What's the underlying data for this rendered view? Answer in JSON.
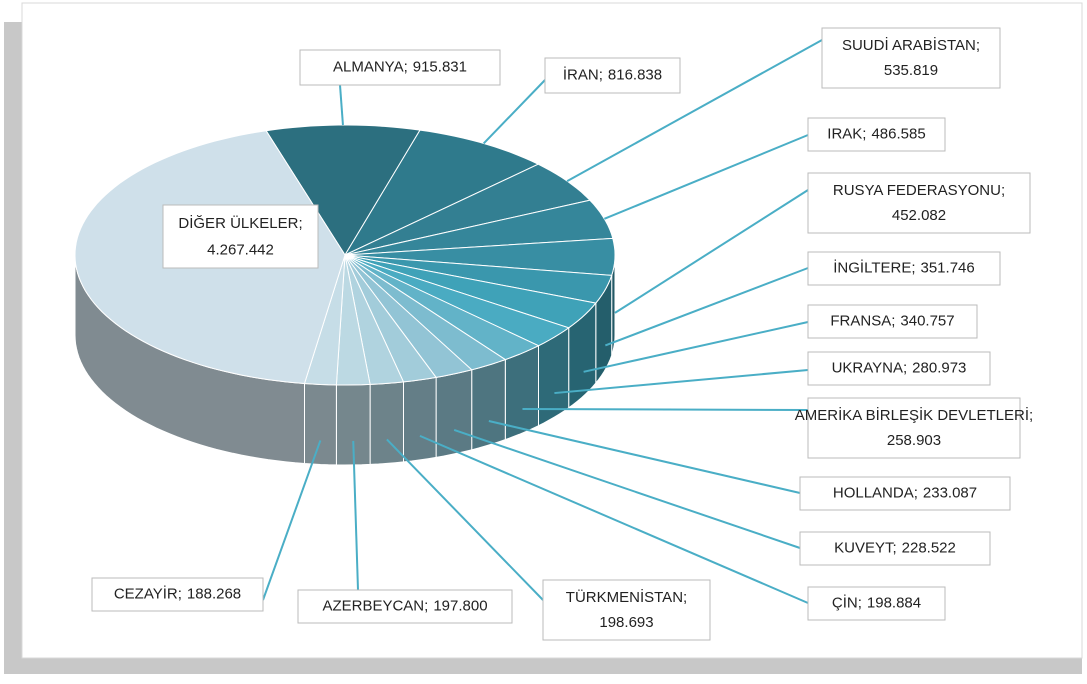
{
  "chart_data": {
    "type": "pie",
    "categories": [
      "ALMANYA",
      "İRAN",
      "SUUDİ ARABİSTAN",
      "IRAK",
      "RUSYA FEDERASYONU",
      "İNGİLTERE",
      "FRANSA",
      "UKRAYNA",
      "AMERİKA BİRLEŞİK DEVLETLERİ",
      "HOLLANDA",
      "KUVEYT",
      "ÇİN",
      "TÜRKMENİSTAN",
      "AZERBEYCAN",
      "CEZAYİR",
      "DİĞER ÜLKELER"
    ],
    "values": [
      915831,
      816838,
      535819,
      486585,
      452082,
      351746,
      340757,
      280973,
      258903,
      233087,
      228522,
      198884,
      198693,
      197800,
      188268,
      4267442
    ],
    "value_labels": [
      "915.831",
      "816.838",
      "535.819",
      "486.585",
      "452.082",
      "351.746",
      "340.757",
      "280.973",
      "258.903",
      "233.087",
      "228.522",
      "198.884",
      "198.693",
      "197.800",
      "188.268",
      "4.267.442"
    ],
    "label_separator": ";",
    "colors": [
      "#2c6f7f",
      "#2f7a8c",
      "#337f92",
      "#35869a",
      "#388ea3",
      "#3a97ad",
      "#3fa2b8",
      "#4aabc2",
      "#62b3c8",
      "#7dbccf",
      "#92c4d5",
      "#a2ccda",
      "#b0d3df",
      "#bcd9e3",
      "#c6dde7",
      "#cfe0ea"
    ]
  }
}
